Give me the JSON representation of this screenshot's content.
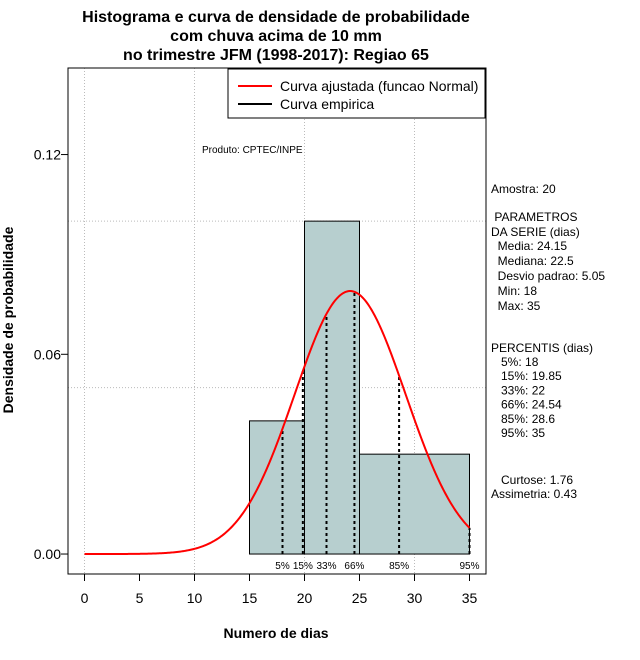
{
  "chart_data": {
    "type": "histogram",
    "title_lines": [
      "Histograma e curva de densidade de probabilidade",
      "com chuva acima de 10 mm",
      "no trimestre JFM (1998-2017): Regiao 65"
    ],
    "xlabel": "Numero de dias",
    "ylabel": "Densidade de probabilidade",
    "xlim": [
      -1.5,
      36.5
    ],
    "ylim": [
      -0.006,
      0.146
    ],
    "x_ticks": [
      0,
      5,
      10,
      15,
      20,
      25,
      30,
      35
    ],
    "y_ticks": [
      0.0,
      0.06,
      0.12
    ],
    "y_tick_labels": [
      "0.00",
      "0.06",
      "0.12"
    ],
    "x_grid": [
      0,
      10,
      20,
      30
    ],
    "y_grid": [
      0.05,
      0.1
    ],
    "bins": [
      {
        "from": 15,
        "to": 20,
        "density": 0.04
      },
      {
        "from": 20,
        "to": 25,
        "density": 0.1
      },
      {
        "from": 25,
        "to": 35,
        "density": 0.03
      }
    ],
    "normal_fit": {
      "mean": 24.15,
      "sd": 5.05,
      "x_from": 0,
      "x_to": 35
    },
    "percentile_lines": [
      {
        "label": "5%",
        "x": 18
      },
      {
        "label": "15%",
        "x": 19.85
      },
      {
        "label": "33%",
        "x": 22
      },
      {
        "label": "66%",
        "x": 24.54
      },
      {
        "label": "85%",
        "x": 28.6
      },
      {
        "label": "95%",
        "x": 35
      }
    ],
    "legend": [
      {
        "label": "Curva ajustada (funcao Normal)",
        "color": "#ff0000"
      },
      {
        "label": "Curva empirica",
        "color": "#000000"
      }
    ],
    "legend_placement": "top-right",
    "annotation": "Produto: CPTEC/INPE",
    "colors": {
      "bar_fill": "#b7cfcf",
      "curve": "#ff0000",
      "grid": "#bbbbbb",
      "axis": "#000000"
    }
  },
  "stats_panel": {
    "amostra": "Amostra: 20",
    "parametros_title": [
      " PARAMETROS",
      "DA SERIE (dias)"
    ],
    "parametros": [
      "  Media: 24.15",
      "  Mediana: 22.5",
      "  Desvio padrao: 5.05",
      "  Min: 18",
      "  Max: 35"
    ],
    "percentis_title": "PERCENTIS (dias)",
    "percentis": [
      "   5%: 18",
      "   15%: 19.85",
      "   33%: 22",
      "   66%: 24.54",
      "   85%: 28.6",
      "   95%: 35"
    ],
    "curtose": "   Curtose: 1.76",
    "assimetria": "Assimetria: 0.43"
  }
}
